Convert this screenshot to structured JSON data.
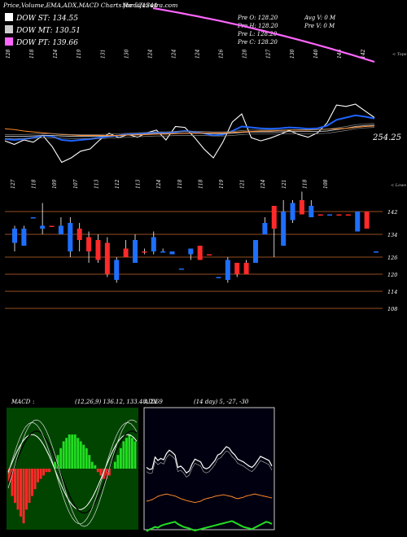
{
  "header": {
    "title": "Price,Volume,EMA,ADX,MACD Charts for 521244",
    "site": "MunafaSutra.com",
    "legend": [
      {
        "label": "DOW ST: 134.55",
        "color": "#ffffff"
      },
      {
        "label": "DOW MT: 130.51",
        "color": "#cccccc"
      },
      {
        "label": "DOW PT: 139.66",
        "color": "#ff66ff"
      }
    ],
    "ohlc": [
      {
        "label": "Pre O: 128.20",
        "extra": "Avg V: 0  M"
      },
      {
        "label": "Pre H: 128.20",
        "extra": "Pre V: 0  M"
      },
      {
        "label": "Pre L: 128.20",
        "extra": ""
      },
      {
        "label": "Pre C: 128.20",
        "extra": ""
      }
    ]
  },
  "colors": {
    "up": "#1e6fff",
    "down": "#ff2a2a",
    "ema_fast": "#1e64ff",
    "ema_slow": "#ff8a2a",
    "dow_pt": "#ff66ff",
    "level_line": "#c8682a",
    "macd_bg": "#004400",
    "adx_bg": "#000010"
  },
  "chart_data": [
    {
      "type": "line",
      "name": "price-ema-panel",
      "corner_label": "< Tops",
      "last_value_label": "254.25",
      "top_labels": [
        "128",
        "118",
        "124",
        "119",
        "131",
        "130",
        "124",
        "124",
        "124",
        "126",
        "128",
        "127",
        "130",
        "140",
        "146",
        "142"
      ],
      "series": [
        {
          "name": "",
          "values": [
            168,
            160,
            170,
            165,
            180,
            155,
            120,
            130,
            145,
            150,
            170,
            185,
            175,
            182,
            176,
            186,
            192,
            170,
            200,
            198,
            176,
            150,
            130,
            165,
            210,
            228,
            175,
            168,
            174,
            182,
            191,
            182,
            176,
            186,
            208,
            248,
            245,
            250,
            235,
            220
          ]
        },
        {
          "name": "",
          "values": [
            172,
            170,
            172,
            175,
            180,
            178,
            170,
            168,
            170,
            172,
            175,
            178,
            180,
            183,
            183,
            185,
            187,
            185,
            188,
            190,
            188,
            185,
            180,
            182,
            190,
            200,
            198,
            196,
            195,
            196,
            198,
            197,
            195,
            196,
            202,
            215,
            220,
            225,
            222,
            218
          ]
        },
        {
          "name": "",
          "values": [
            178,
            178,
            178,
            179,
            180,
            180,
            179,
            178,
            178,
            178,
            178,
            179,
            180,
            181,
            182,
            183,
            184,
            184,
            185,
            185,
            185,
            185,
            184,
            184,
            185,
            187,
            188,
            188,
            188,
            188,
            189,
            189,
            189,
            189,
            190,
            193,
            196,
            200,
            202,
            203
          ]
        },
        {
          "name": "",
          "values": [
            195,
            193,
            190,
            188,
            186,
            184,
            182,
            181,
            180,
            180,
            180,
            180,
            180,
            181,
            181,
            182,
            183,
            183,
            184,
            185,
            185,
            186,
            186,
            186,
            187,
            188,
            189,
            190,
            190,
            191,
            192,
            192,
            192,
            193,
            194,
            195,
            196,
            198,
            200,
            201
          ]
        }
      ],
      "dow_pt": {
        "start": 270,
        "end": 160
      }
    },
    {
      "type": "candlestick",
      "name": "price-panel",
      "corner_label": "< Lows",
      "top_labels": [
        "127",
        "118",
        "109",
        "107",
        "113",
        "112",
        "113",
        "124",
        "118",
        "118",
        "119",
        "121",
        "124",
        "121",
        "118",
        "108"
      ],
      "levels": [
        142,
        134,
        126,
        120,
        114,
        108
      ],
      "ylim": [
        104,
        149
      ],
      "candles": [
        {
          "o": 136,
          "c": 131,
          "h": 137,
          "l": 128,
          "up": true
        },
        {
          "o": 130,
          "c": 136,
          "h": 137,
          "l": 130,
          "up": true
        },
        {
          "o": 140,
          "c": 140,
          "h": 140,
          "l": 140,
          "up": true
        },
        {
          "o": 136,
          "c": 137,
          "h": 145,
          "l": 134,
          "up": true
        },
        {
          "o": 137,
          "c": 137,
          "h": 137,
          "l": 137,
          "up": false
        },
        {
          "o": 134,
          "c": 137,
          "h": 140,
          "l": 134,
          "up": true
        },
        {
          "o": 128,
          "c": 138,
          "h": 140,
          "l": 126,
          "up": true
        },
        {
          "o": 132,
          "c": 136,
          "h": 138,
          "l": 128,
          "up": false
        },
        {
          "o": 128,
          "c": 133,
          "h": 135,
          "l": 124,
          "up": false
        },
        {
          "o": 125,
          "c": 132,
          "h": 134,
          "l": 124,
          "up": false
        },
        {
          "o": 120,
          "c": 131,
          "h": 133,
          "l": 119,
          "up": false
        },
        {
          "o": 118,
          "c": 125,
          "h": 126,
          "l": 117,
          "up": true
        },
        {
          "o": 126,
          "c": 129,
          "h": 132,
          "l": 126,
          "up": false
        },
        {
          "o": 124,
          "c": 132,
          "h": 134,
          "l": 124,
          "up": true
        },
        {
          "o": 128,
          "c": 128,
          "h": 129,
          "l": 127,
          "up": false
        },
        {
          "o": 128,
          "c": 133,
          "h": 135,
          "l": 127,
          "up": true
        },
        {
          "o": 128,
          "c": 128,
          "h": 129,
          "l": 128,
          "up": true
        },
        {
          "o": 127,
          "c": 128,
          "h": 128,
          "l": 127,
          "up": true
        },
        {
          "o": 122,
          "c": 122,
          "h": 122,
          "l": 122,
          "up": true
        },
        {
          "o": 127,
          "c": 129,
          "h": 129,
          "l": 125,
          "up": true
        },
        {
          "o": 125,
          "c": 130,
          "h": 130,
          "l": 125,
          "up": false
        },
        {
          "o": 127,
          "c": 127,
          "h": 127,
          "l": 127,
          "up": false
        },
        {
          "o": 119,
          "c": 119,
          "h": 119,
          "l": 119,
          "up": true
        },
        {
          "o": 118,
          "c": 125,
          "h": 126,
          "l": 117,
          "up": true
        },
        {
          "o": 120,
          "c": 124,
          "h": 124,
          "l": 119,
          "up": false
        },
        {
          "o": 120,
          "c": 124,
          "h": 125,
          "l": 120,
          "up": false
        },
        {
          "o": 124,
          "c": 132,
          "h": 132,
          "l": 124,
          "up": true
        },
        {
          "o": 134,
          "c": 138,
          "h": 140,
          "l": 134,
          "up": true
        },
        {
          "o": 136,
          "c": 144,
          "h": 144,
          "l": 126,
          "up": false
        },
        {
          "o": 130,
          "c": 142,
          "h": 146,
          "l": 130,
          "up": true
        },
        {
          "o": 139,
          "c": 145,
          "h": 146,
          "l": 138,
          "up": true
        },
        {
          "o": 146,
          "c": 141,
          "h": 149,
          "l": 141,
          "up": false
        },
        {
          "o": 144,
          "c": 140,
          "h": 146,
          "l": 140,
          "up": true
        },
        {
          "o": 141,
          "c": 141,
          "h": 141,
          "l": 141,
          "up": false
        },
        {
          "o": 141,
          "c": 141,
          "h": 141,
          "l": 141,
          "up": true
        },
        {
          "o": 141,
          "c": 141,
          "h": 141,
          "l": 141,
          "up": false
        },
        {
          "o": 141,
          "c": 141,
          "h": 141,
          "l": 141,
          "up": false
        },
        {
          "o": 135,
          "c": 142,
          "h": 142,
          "l": 135,
          "up": true
        },
        {
          "o": 142,
          "c": 136,
          "h": 142,
          "l": 136,
          "up": false
        },
        {
          "o": 128,
          "c": 128,
          "h": 128,
          "l": 128,
          "up": true
        }
      ]
    },
    {
      "type": "bar",
      "name": "macd-panel",
      "title": "MACD",
      "params": "(12,26,9) 136.12, 133.48, 2.69",
      "values": [
        -4,
        -8,
        -10,
        -12,
        -14,
        -16,
        -12,
        -10,
        -8,
        -6,
        -4,
        -3,
        -2,
        -1,
        -1,
        0,
        2,
        4,
        6,
        8,
        9,
        10,
        10,
        10,
        9,
        8,
        7,
        6,
        4,
        2,
        1,
        -1,
        -2,
        -3,
        -3,
        -2,
        0,
        2,
        4,
        6,
        8,
        9,
        10,
        9,
        8
      ]
    },
    {
      "type": "line",
      "name": "adx-panel",
      "title": "ADX",
      "params": "(14 day) 5, -27, -30",
      "series": [
        {
          "name": "",
          "values": [
            30,
            27,
            28,
            45,
            40,
            43,
            41,
            50,
            55,
            52,
            48,
            30,
            32,
            28,
            22,
            25,
            35,
            42,
            40,
            38,
            30,
            28,
            30,
            35,
            40,
            48,
            50,
            55,
            60,
            58,
            52,
            48,
            42,
            40,
            38,
            35,
            32,
            30,
            34,
            40,
            46,
            44,
            42,
            40,
            32
          ]
        },
        {
          "name": "",
          "values": [
            60,
            65,
            68,
            72,
            70,
            75,
            78,
            80,
            82,
            84,
            86,
            80,
            76,
            72,
            70,
            68,
            65,
            62,
            64,
            66,
            68,
            70,
            72,
            74,
            76,
            78,
            80,
            82,
            84,
            86,
            88,
            84,
            80,
            76,
            72,
            70,
            68,
            66,
            70,
            74,
            78,
            82,
            86,
            84,
            80
          ]
        },
        {
          "name": "",
          "values": [
            -10,
            -12,
            -15,
            -20,
            -25,
            -28,
            -30,
            -32,
            -30,
            -28,
            -26,
            -22,
            -18,
            -15,
            -12,
            -10,
            -8,
            -6,
            -8,
            -10,
            -15,
            -18,
            -20,
            -22,
            -25,
            -27,
            -28,
            -30,
            -28,
            -26,
            -24,
            -20,
            -18,
            -20,
            -22,
            -26,
            -28,
            -30,
            -32,
            -30,
            -28,
            -26,
            -24,
            -22,
            -20
          ]
        }
      ]
    }
  ]
}
